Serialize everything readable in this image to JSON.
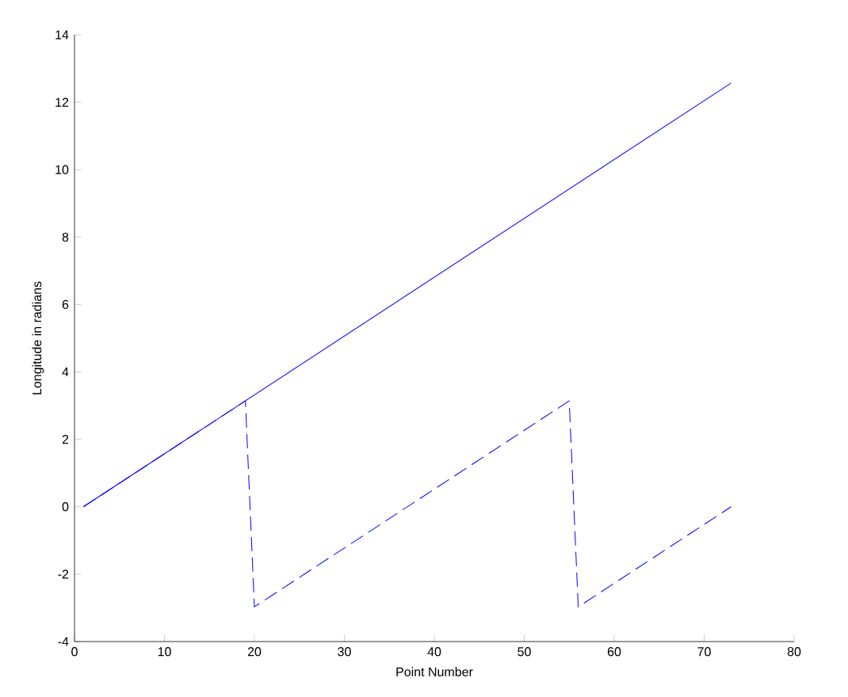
{
  "chart_data": {
    "type": "line",
    "xlabel": "Point Number",
    "ylabel": "Longitude in radians",
    "xlim": [
      0,
      80
    ],
    "ylim": [
      -4,
      14
    ],
    "xticks": [
      0,
      10,
      20,
      30,
      40,
      50,
      60,
      70,
      80
    ],
    "yticks": [
      -4,
      -2,
      0,
      2,
      4,
      6,
      8,
      10,
      12,
      14
    ],
    "grid": false,
    "series": [
      {
        "color": "#0000ff",
        "line_style": "solid",
        "x": [
          1,
          73
        ],
        "values": [
          0,
          12.57
        ]
      },
      {
        "color": "#0000ff",
        "line_style": "dashed",
        "x": [
          1,
          19,
          20,
          55,
          56,
          73
        ],
        "values": [
          0,
          3.14,
          -2.97,
          3.14,
          -2.97,
          0
        ]
      }
    ]
  }
}
